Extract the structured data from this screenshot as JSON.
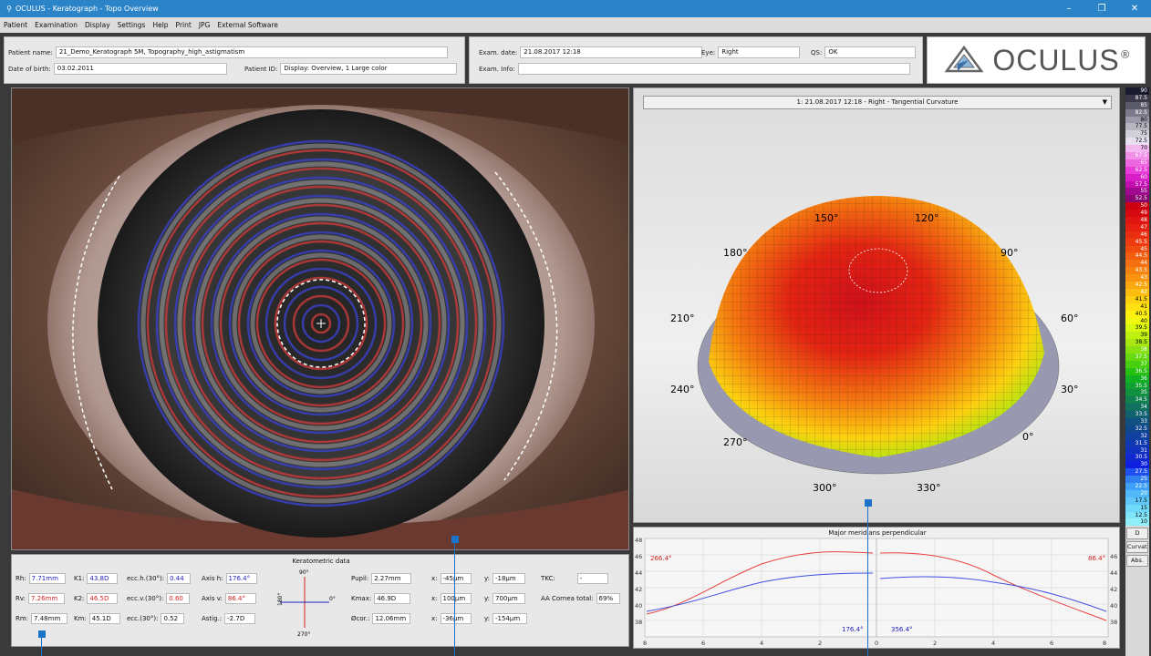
{
  "window": {
    "title": "OCULUS - Keratograph - Topo Overview",
    "controls": [
      "–",
      "❐",
      "✕"
    ]
  },
  "menu": [
    "Patient",
    "Examination",
    "Display",
    "Settings",
    "Help",
    "Print",
    "JPG",
    "External Software"
  ],
  "patient": {
    "name_label": "Patient name:",
    "name": "21_Demo_Keratograph 5M, Topography_high_astigmatism",
    "dob_label": "Date of birth:",
    "dob": "03.02.2011",
    "id_label": "Patient ID:",
    "id": "Display: Overview, 1 Large color",
    "exam_date_label": "Exam. date:",
    "exam_date": "21.08.2017 12:18",
    "eye_label": "Eye:",
    "eye": "Right",
    "qs_label": "QS:",
    "qs": "OK",
    "exam_info_label": "Exam. Info:",
    "exam_info": ""
  },
  "logo": {
    "text": "OCULUS",
    "mark": "®"
  },
  "topo": {
    "selector": "1: 21.08.2017 12:18 - Right - Tangential Curvature",
    "angles": [
      "150°",
      "120°",
      "180°",
      "90°",
      "210°",
      "60°",
      "240°",
      "30°",
      "270°",
      "0°",
      "300°",
      "330°"
    ]
  },
  "scale": {
    "values": [
      "90",
      "87.5",
      "85",
      "82.5",
      "80",
      "77.5",
      "75",
      "72.5",
      "70",
      "67.5",
      "65",
      "62.5",
      "60",
      "57.5",
      "55",
      "52.5",
      "50",
      "49",
      "48",
      "47",
      "46",
      "45.5",
      "45",
      "44.5",
      "44",
      "43.5",
      "43",
      "42.5",
      "42",
      "41.5",
      "41",
      "40.5",
      "40",
      "39.5",
      "39",
      "38.5",
      "38",
      "37.5",
      "37",
      "36.5",
      "36",
      "35.5",
      "35",
      "34.5",
      "34",
      "33.5",
      "33",
      "32.5",
      "32",
      "31.5",
      "31",
      "30.5",
      "30",
      "27.5",
      "25",
      "22.5",
      "20",
      "17.5",
      "15",
      "12.5",
      "10"
    ],
    "colors": [
      "#1a1a2e",
      "#3a3a4a",
      "#5a5a6a",
      "#7a7a8a",
      "#9a9aaa",
      "#b5b5c0",
      "#d0d0d8",
      "#e8e0f0",
      "#f4b8f0",
      "#f090e8",
      "#ee66e0",
      "#e83cd8",
      "#d81ec8",
      "#c010b0",
      "#a00890",
      "#880470",
      "#cc0010",
      "#d80810",
      "#e01410",
      "#e62010",
      "#ea2e10",
      "#ee3c10",
      "#f04c10",
      "#f25e10",
      "#f47010",
      "#f68210",
      "#f89410",
      "#faa810",
      "#fcbc10",
      "#fed010",
      "#ffe010",
      "#fff010",
      "#f0f810",
      "#d8f810",
      "#c0f010",
      "#a8e810",
      "#88e010",
      "#68d810",
      "#48d010",
      "#28c010",
      "#10b020",
      "#10a030",
      "#109040",
      "#108050",
      "#107060",
      "#106070",
      "#105080",
      "#104890",
      "#1040a0",
      "#1038b0",
      "#1030c0",
      "#1028d0",
      "#1020e0",
      "#2050f0",
      "#3080f0",
      "#40a0f8",
      "#50b8f8",
      "#60c8f8",
      "#70d8f8",
      "#80e4f8",
      "#90eef8"
    ],
    "btn_d": "D",
    "btn_curv": "Curvatu",
    "btn_abs": "Abs."
  },
  "kdata": {
    "title": "Keratometric data",
    "rh": {
      "label": "Rh:",
      "value": "7.71mm"
    },
    "rv": {
      "label": "Rv:",
      "value": "7.26mm"
    },
    "rm": {
      "label": "Rm:",
      "value": "7.48mm"
    },
    "k1": {
      "label": "K1:",
      "value": "43.8D"
    },
    "k2": {
      "label": "K2:",
      "value": "46.5D"
    },
    "km": {
      "label": "Km:",
      "value": "45.1D"
    },
    "ecch": {
      "label": "ecc.h.(30°):",
      "value": "0.44"
    },
    "eccv": {
      "label": "ecc.v.(30°):",
      "value": "0.60"
    },
    "ecc": {
      "label": "ecc.(30°):",
      "value": "0.52"
    },
    "axish": {
      "label": "Axis h:",
      "value": "176.4°"
    },
    "axisv": {
      "label": "Axis v:",
      "value": "86.4°"
    },
    "astig": {
      "label": "Astig.:",
      "value": "-2.7D"
    },
    "compass": {
      "top": "90°",
      "bottom": "270°",
      "left": "180°",
      "right": "0°"
    },
    "pupil": {
      "label": "Pupil:",
      "value": "2.27mm"
    },
    "kmax": {
      "label": "Kmax:",
      "value": "46.9D"
    },
    "dcor": {
      "label": "Øcor.:",
      "value": "12.06mm"
    },
    "x1": {
      "label": "x:",
      "value": "-45µm"
    },
    "x2": {
      "label": "x:",
      "value": "100µm"
    },
    "x3": {
      "label": "x:",
      "value": "-36µm"
    },
    "y1": {
      "label": "y:",
      "value": "-18µm"
    },
    "y2": {
      "label": "y:",
      "value": "700µm"
    },
    "y3": {
      "label": "y:",
      "value": "-154µm"
    },
    "tkc": {
      "label": "TKC:",
      "value": "-"
    },
    "aa": {
      "label": "AA Cornea total:",
      "value": "69%"
    }
  },
  "profile": {
    "title": "Major meridians perpendicular",
    "left_label_red": "266.4°",
    "right_label_red": "86.4°",
    "left_label_blue": "176.4°",
    "right_label_blue": "356.4°",
    "yticks": [
      "48",
      "46",
      "44",
      "42",
      "40",
      "38"
    ],
    "xticks": [
      "8",
      "6",
      "4",
      "2",
      "0",
      "2",
      "4",
      "6",
      "8"
    ]
  }
}
